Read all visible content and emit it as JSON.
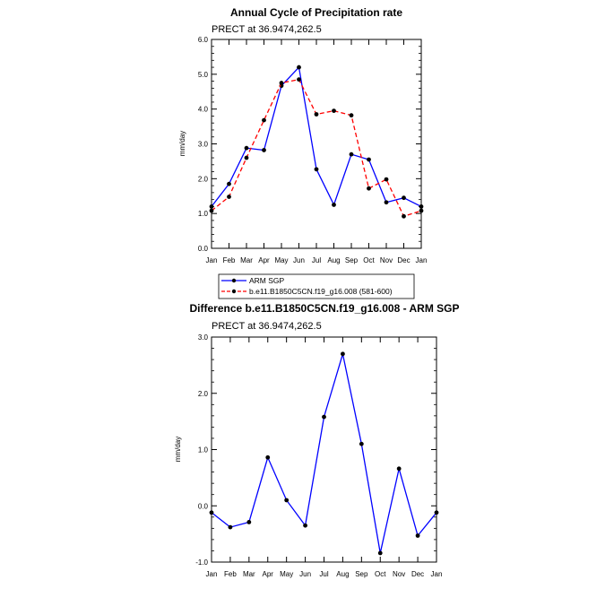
{
  "chart_data": [
    {
      "type": "line",
      "title": "Annual Cycle of Precipitation rate",
      "subtitle": "PRECT at 36.9474,262.5",
      "ylabel": "mm/day",
      "xlabel": "",
      "categories": [
        "Jan",
        "Feb",
        "Mar",
        "Apr",
        "May",
        "Jun",
        "Jul",
        "Aug",
        "Sep",
        "Oct",
        "Nov",
        "Dec",
        "Jan"
      ],
      "ylim": [
        0,
        6
      ],
      "yticks": [
        "0.0",
        "1.0",
        "2.0",
        "3.0",
        "4.0",
        "5.0",
        "6.0"
      ],
      "series": [
        {
          "name": "ARM SGP",
          "color": "#0000ff",
          "dash": "solid",
          "values": [
            1.2,
            1.85,
            2.88,
            2.82,
            4.67,
            5.2,
            2.27,
            1.25,
            2.7,
            2.55,
            1.32,
            1.45,
            1.2
          ]
        },
        {
          "name": "b.e11.B1850C5CN.f19_g16.008 (581-600)",
          "color": "#ff0000",
          "dash": "dashed",
          "values": [
            1.08,
            1.48,
            2.6,
            3.68,
            4.75,
            4.85,
            3.85,
            3.95,
            3.82,
            1.72,
            1.98,
            0.92,
            1.08
          ]
        }
      ]
    },
    {
      "type": "line",
      "title": "Difference b.e11.B1850C5CN.f19_g16.008 - ARM SGP",
      "subtitle": "PRECT at 36.9474,262.5",
      "ylabel": "mm/day",
      "xlabel": "",
      "categories": [
        "Jan",
        "Feb",
        "Mar",
        "Apr",
        "May",
        "Jun",
        "Jul",
        "Aug",
        "Sep",
        "Oct",
        "Nov",
        "Dec",
        "Jan"
      ],
      "ylim": [
        -1,
        3
      ],
      "yticks": [
        "-1.0",
        "0.0",
        "1.0",
        "2.0",
        "3.0"
      ],
      "series": [
        {
          "name": "Difference",
          "color": "#0000ff",
          "dash": "solid",
          "values": [
            -0.12,
            -0.38,
            -0.29,
            0.86,
            0.1,
            -0.35,
            1.58,
            2.7,
            1.1,
            -0.84,
            0.66,
            -0.53,
            -0.12
          ]
        }
      ]
    }
  ]
}
